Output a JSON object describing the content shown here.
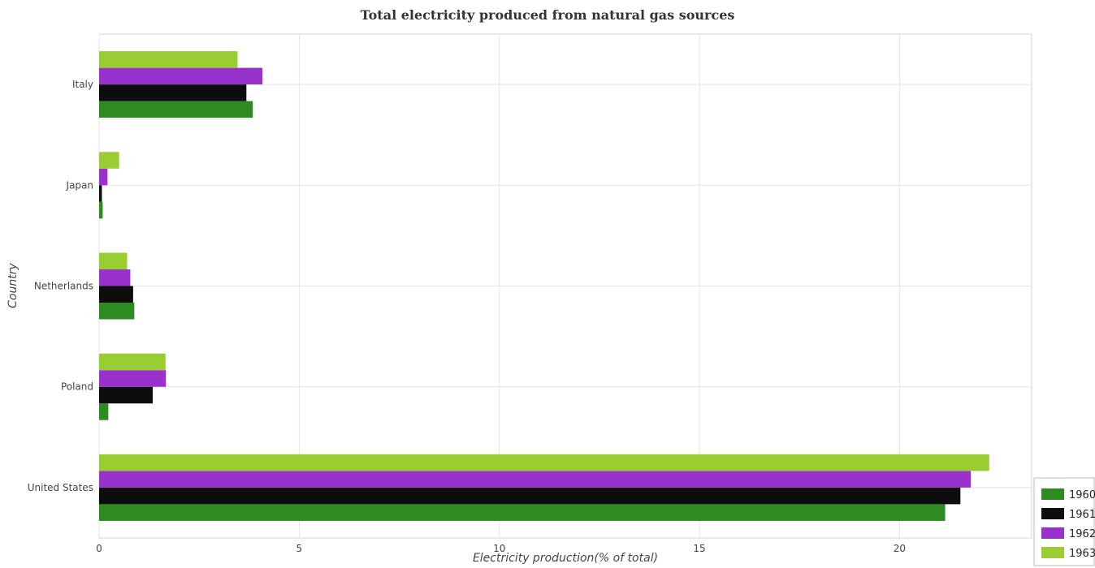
{
  "chart_data": {
    "type": "bar",
    "orientation": "horizontal",
    "title": "Total electricity produced from natural gas sources",
    "xlabel": "Electricity production(% of total)",
    "ylabel": "Country",
    "categories": [
      "Italy",
      "Japan",
      "Netherlands",
      "Poland",
      "United States"
    ],
    "series": [
      {
        "name": "1960",
        "color": "#2e8b22",
        "values": [
          3.84,
          0.09,
          0.88,
          0.23,
          21.14
        ]
      },
      {
        "name": "1961",
        "color": "#0d0d0d",
        "values": [
          3.68,
          0.07,
          0.85,
          1.34,
          21.52
        ]
      },
      {
        "name": "1962",
        "color": "#9932cc",
        "values": [
          4.08,
          0.21,
          0.78,
          1.67,
          21.78
        ]
      },
      {
        "name": "1963",
        "color": "#9acd32",
        "values": [
          3.46,
          0.5,
          0.7,
          1.66,
          22.24
        ]
      }
    ],
    "xlim": [
      0,
      23.3
    ],
    "xticks": [
      0,
      5,
      10,
      15,
      20
    ],
    "grid": true,
    "legend_position": "bottom-right"
  }
}
